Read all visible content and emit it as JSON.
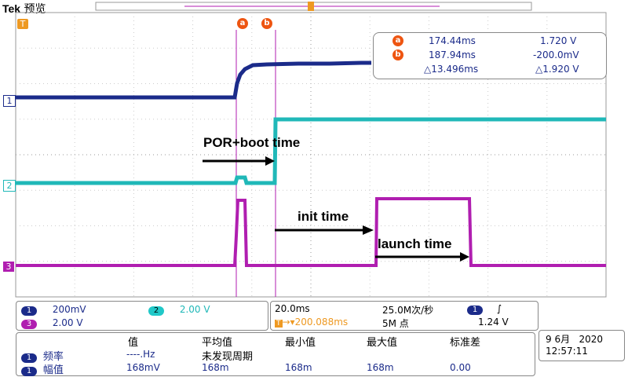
{
  "brand": {
    "name": "Tek",
    "mode": "预览"
  },
  "trigger_marker": "T",
  "cursors": {
    "a": {
      "label": "a",
      "time": "174.44ms",
      "value": "1.720 V"
    },
    "b": {
      "label": "b",
      "time": "187.94ms",
      "value": "-200.0mV"
    },
    "delta": {
      "time": "△13.496ms",
      "value": "△1.920 V"
    }
  },
  "channel_markers": {
    "ch1": "1",
    "ch2": "2",
    "ch3": "3"
  },
  "annotations": {
    "por": "POR+boot time",
    "init": "init time",
    "launch": "launch time"
  },
  "channel_settings": {
    "ch1": {
      "num": "1",
      "scale": "200mV"
    },
    "ch2": {
      "num": "2",
      "scale": "2.00 V"
    },
    "ch3": {
      "num": "3",
      "scale": "2.00 V"
    }
  },
  "timebase": {
    "scale": "20.0ms",
    "sample_rate": "25.0M次/秒",
    "trigger_pos": "200.088ms",
    "record_length": "5M 点",
    "trigger_source": "1",
    "trigger_slope": "∫",
    "trigger_level": "1.24 V"
  },
  "measurements": {
    "headers": [
      "值",
      "平均值",
      "最小值",
      "最大值",
      "标准差"
    ],
    "rows": [
      {
        "ch": "1",
        "name": "频率",
        "value": "----.Hz",
        "mean": "未发现周期",
        "min": "",
        "max": "",
        "std": ""
      },
      {
        "ch": "1",
        "name": "幅值",
        "value": "168mV",
        "mean": "168m",
        "min": "168m",
        "max": "168m",
        "std": "0.00"
      }
    ]
  },
  "datetime": {
    "date": "9 6月   2020",
    "time": "12:57:11"
  },
  "colors": {
    "ch1": "#1b2b8a",
    "ch2": "#20b8b8",
    "ch3": "#b01eb0",
    "cursor": "#ee5511",
    "grid": "#bbbbbb"
  }
}
